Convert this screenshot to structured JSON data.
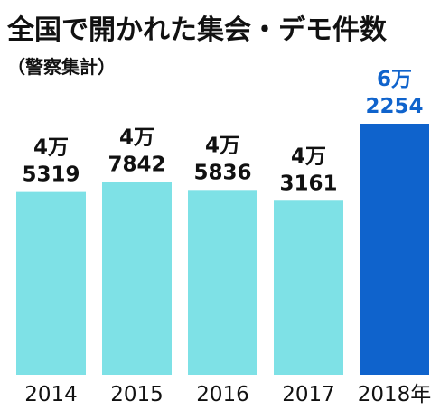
{
  "title": "全国で開かれた集会・デモ件数",
  "subtitle": "（警察集計）",
  "chart_data": {
    "type": "bar",
    "title": "全国で開かれた集会・デモ件数",
    "subtitle": "（警察集計）",
    "categories": [
      "2014",
      "2015",
      "2016",
      "2017",
      "2018年"
    ],
    "values": [
      45319,
      47842,
      45836,
      43161,
      62254
    ],
    "value_labels": [
      [
        "4万",
        "5319"
      ],
      [
        "4万",
        "7842"
      ],
      [
        "4万",
        "5836"
      ],
      [
        "4万",
        "3161"
      ],
      [
        "6万",
        "2254"
      ]
    ],
    "highlight_index": 4,
    "ylim": [
      0,
      65000
    ],
    "grid": false,
    "legend": "none",
    "colors": {
      "bar": "#7ee1e6",
      "highlight_bar": "#0f63cc",
      "label": "#111111",
      "highlight_label": "#0f63cc"
    }
  }
}
